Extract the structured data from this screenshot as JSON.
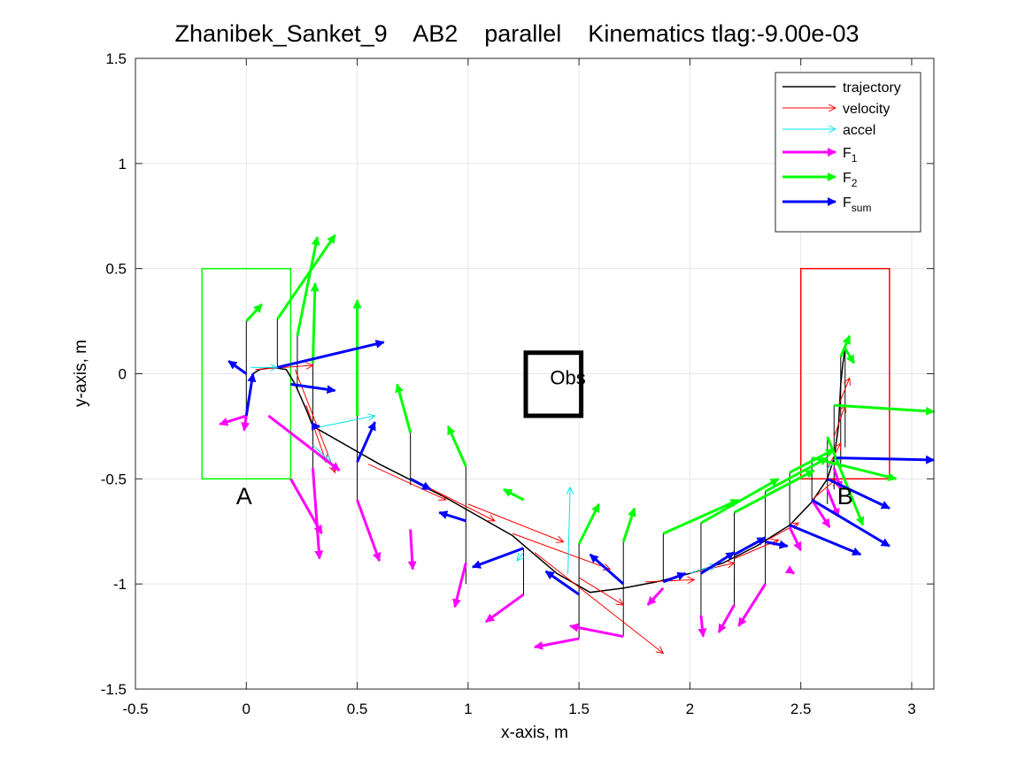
{
  "chart_data": {
    "type": "line",
    "title": "Zhanibek_Sanket_9    AB2    parallel    Kinematics tlag:-9.00e-03",
    "xlabel": "x-axis, m",
    "ylabel": "y-axis, m",
    "xlim": [
      -0.5,
      3.1
    ],
    "ylim": [
      -1.5,
      1.5
    ],
    "xticks": [
      -0.5,
      0,
      0.5,
      1,
      1.5,
      2,
      2.5,
      3
    ],
    "xtick_labels": [
      "-0.5",
      "0",
      "0.5",
      "1",
      "1.5",
      "2",
      "2.5",
      "3"
    ],
    "yticks": [
      -1.5,
      -1,
      -0.5,
      0,
      0.5,
      1,
      1.5
    ],
    "ytick_labels": [
      "-1.5",
      "-1",
      "-0.5",
      "0",
      "0.5",
      "1",
      "1.5"
    ],
    "grid": true,
    "legend_position": "top-right",
    "colors": {
      "trajectory": "#000000",
      "velocity": "#ff0000",
      "accel": "#00e5ee",
      "F1": "#ff00ff",
      "F2": "#00ff00",
      "Fsum": "#0000ff",
      "regionA": "#00ff00",
      "regionB": "#ff0000",
      "obstacle": "#000000"
    },
    "legend": [
      {
        "key": "trajectory",
        "label": "trajectory",
        "sub": ""
      },
      {
        "key": "velocity",
        "label": "velocity",
        "sub": ""
      },
      {
        "key": "accel",
        "label": "accel",
        "sub": ""
      },
      {
        "key": "F1",
        "label": "F",
        "sub": "1"
      },
      {
        "key": "F2",
        "label": "F",
        "sub": "2"
      },
      {
        "key": "Fsum",
        "label": "F",
        "sub": "sum"
      }
    ],
    "regions": {
      "A": {
        "label": "A",
        "x": [
          -0.2,
          0.2
        ],
        "y": [
          -0.5,
          0.5
        ],
        "label_at": [
          -0.01,
          -0.62
        ]
      },
      "B": {
        "label": "B",
        "x": [
          2.5,
          2.9
        ],
        "y": [
          -0.5,
          0.5
        ],
        "label_at": [
          2.7,
          -0.62
        ]
      },
      "obstacle": {
        "label": "Obs",
        "x": [
          1.26,
          1.51
        ],
        "y": [
          -0.2,
          0.1
        ],
        "label_at": [
          1.45,
          -0.05
        ]
      }
    },
    "trajectory": [
      [
        0.0,
        -0.2
      ],
      [
        0.03,
        0.0
      ],
      [
        0.06,
        0.02
      ],
      [
        0.12,
        0.03
      ],
      [
        0.18,
        0.02
      ],
      [
        0.22,
        -0.05
      ],
      [
        0.27,
        -0.17
      ],
      [
        0.3,
        -0.25
      ],
      [
        0.4,
        -0.31
      ],
      [
        0.5,
        -0.37
      ],
      [
        0.6,
        -0.43
      ],
      [
        0.75,
        -0.51
      ],
      [
        0.9,
        -0.59
      ],
      [
        1.05,
        -0.68
      ],
      [
        1.2,
        -0.77
      ],
      [
        1.3,
        -0.86
      ],
      [
        1.4,
        -0.95
      ],
      [
        1.55,
        -1.04
      ],
      [
        1.7,
        -1.02
      ],
      [
        1.85,
        -0.99
      ],
      [
        2.0,
        -0.95
      ],
      [
        2.15,
        -0.9
      ],
      [
        2.3,
        -0.82
      ],
      [
        2.45,
        -0.72
      ],
      [
        2.55,
        -0.61
      ],
      [
        2.62,
        -0.5
      ],
      [
        2.65,
        -0.4
      ],
      [
        2.67,
        -0.25
      ],
      [
        2.68,
        -0.05
      ],
      [
        2.69,
        0.05
      ],
      [
        2.7,
        0.12
      ]
    ],
    "segments": [
      {
        "x": 0.0,
        "y0": 0.25,
        "y1": -0.2
      },
      {
        "x": 0.14,
        "y0": 0.26,
        "y1": 0.03
      },
      {
        "x": 0.23,
        "y0": 0.18,
        "y1": -0.08
      },
      {
        "x": 0.3,
        "y0": 0.05,
        "y1": -0.45
      },
      {
        "x": 0.5,
        "y0": -0.2,
        "y1": -0.6
      },
      {
        "x": 0.74,
        "y0": -0.28,
        "y1": -0.53
      },
      {
        "x": 0.99,
        "y0": -0.44,
        "y1": -1.0
      },
      {
        "x": 1.25,
        "y0": -0.83,
        "y1": -1.05
      },
      {
        "x": 1.5,
        "y0": -0.81,
        "y1": -1.26
      },
      {
        "x": 1.7,
        "y0": -0.8,
        "y1": -1.25
      },
      {
        "x": 1.88,
        "y0": -0.76,
        "y1": -0.99
      },
      {
        "x": 2.05,
        "y0": -0.71,
        "y1": -1.15
      },
      {
        "x": 2.2,
        "y0": -0.66,
        "y1": -1.1
      },
      {
        "x": 2.34,
        "y0": -0.56,
        "y1": -1.0
      },
      {
        "x": 2.45,
        "y0": -0.47,
        "y1": -0.73
      },
      {
        "x": 2.55,
        "y0": -0.4,
        "y1": -0.6
      },
      {
        "x": 2.62,
        "y0": -0.3,
        "y1": -0.62
      },
      {
        "x": 2.65,
        "y0": -0.15,
        "y1": -0.55
      },
      {
        "x": 2.68,
        "y0": 0.08,
        "y1": -0.45
      },
      {
        "x": 2.7,
        "y0": 0.12,
        "y1": -0.35
      }
    ],
    "velocity": [
      [
        0.04,
        0.02,
        0.3,
        0.04
      ],
      [
        0.22,
        0.02,
        0.4,
        -0.47
      ],
      [
        0.27,
        -0.15,
        0.36,
        -0.42
      ],
      [
        0.55,
        -0.43,
        0.9,
        -0.6
      ],
      [
        0.8,
        -0.53,
        1.12,
        -0.7
      ],
      [
        1.0,
        -0.62,
        1.43,
        -0.8
      ],
      [
        1.2,
        -0.76,
        1.64,
        -0.93
      ],
      [
        1.3,
        -0.85,
        1.88,
        -1.33
      ],
      [
        1.5,
        -0.97,
        1.7,
        -1.1
      ],
      [
        1.8,
        -0.99,
        2.02,
        -0.98
      ],
      [
        2.0,
        -0.95,
        2.2,
        -0.9
      ],
      [
        2.2,
        -0.88,
        2.4,
        -0.79
      ],
      [
        2.35,
        -0.79,
        2.49,
        -0.71
      ],
      [
        2.55,
        -0.6,
        2.66,
        -0.5
      ],
      [
        2.62,
        -0.45,
        2.68,
        -0.33
      ],
      [
        2.65,
        -0.3,
        2.7,
        -0.15
      ],
      [
        2.67,
        -0.15,
        2.72,
        -0.02
      ]
    ],
    "accel": [
      [
        0.02,
        0.03,
        0.14,
        0.03
      ],
      [
        0.3,
        -0.26,
        0.58,
        -0.2
      ],
      [
        0.3,
        -0.34,
        0.38,
        -0.42
      ],
      [
        1.45,
        -0.95,
        1.46,
        -0.54
      ],
      [
        1.25,
        -0.85,
        1.22,
        -0.89
      ],
      [
        2.0,
        -0.95,
        2.12,
        -0.91
      ],
      [
        2.62,
        -0.45,
        2.68,
        -0.4
      ]
    ],
    "F1": [
      [
        0.0,
        -0.2,
        -0.12,
        -0.24
      ],
      [
        0.0,
        -0.2,
        -0.01,
        -0.27
      ],
      [
        0.1,
        -0.2,
        0.42,
        -0.46
      ],
      [
        0.3,
        -0.45,
        0.33,
        -0.88
      ],
      [
        0.2,
        -0.5,
        0.34,
        -0.76
      ],
      [
        0.5,
        -0.6,
        0.6,
        -0.89
      ],
      [
        0.74,
        -0.74,
        0.75,
        -0.93
      ],
      [
        0.99,
        -0.9,
        0.94,
        -1.11
      ],
      [
        1.25,
        -1.05,
        1.08,
        -1.18
      ],
      [
        1.5,
        -1.26,
        1.3,
        -1.3
      ],
      [
        1.7,
        -1.25,
        1.46,
        -1.2
      ],
      [
        1.88,
        -1.02,
        1.81,
        -1.1
      ],
      [
        2.05,
        -1.15,
        2.06,
        -1.25
      ],
      [
        2.2,
        -1.1,
        2.13,
        -1.23
      ],
      [
        2.34,
        -1.0,
        2.22,
        -1.2
      ],
      [
        2.45,
        -0.73,
        2.5,
        -0.84
      ],
      [
        2.44,
        -0.93,
        2.47,
        -0.95
      ],
      [
        2.55,
        -0.6,
        2.63,
        -0.73
      ],
      [
        2.62,
        -0.55,
        2.67,
        -0.68
      ],
      [
        2.65,
        -0.45,
        2.68,
        -0.55
      ]
    ],
    "F2": [
      [
        0.0,
        0.25,
        0.07,
        0.33
      ],
      [
        0.14,
        0.26,
        0.4,
        0.66
      ],
      [
        0.23,
        0.18,
        0.32,
        0.65
      ],
      [
        0.3,
        0.05,
        0.31,
        0.43
      ],
      [
        0.5,
        -0.2,
        0.5,
        0.35
      ],
      [
        0.74,
        -0.28,
        0.68,
        -0.05
      ],
      [
        0.99,
        -0.44,
        0.91,
        -0.25
      ],
      [
        1.25,
        -0.6,
        1.16,
        -0.55
      ],
      [
        1.5,
        -0.81,
        1.59,
        -0.62
      ],
      [
        1.7,
        -0.8,
        1.75,
        -0.64
      ],
      [
        1.88,
        -0.76,
        2.22,
        -0.6
      ],
      [
        2.05,
        -0.71,
        2.4,
        -0.5
      ],
      [
        2.2,
        -0.66,
        2.56,
        -0.46
      ],
      [
        2.34,
        -0.56,
        2.62,
        -0.4
      ],
      [
        2.45,
        -0.47,
        2.65,
        -0.36
      ],
      [
        2.55,
        -0.4,
        2.93,
        -0.5
      ],
      [
        2.62,
        -0.3,
        2.78,
        -0.72
      ],
      [
        2.65,
        -0.15,
        3.1,
        -0.18
      ],
      [
        2.68,
        0.08,
        2.72,
        0.18
      ],
      [
        2.7,
        0.12,
        2.74,
        0.05
      ]
    ],
    "Fsum": [
      [
        0.0,
        -0.2,
        0.03,
        0.0
      ],
      [
        0.0,
        0.0,
        -0.08,
        0.06
      ],
      [
        0.14,
        0.03,
        0.62,
        0.15
      ],
      [
        0.2,
        -0.05,
        0.4,
        -0.08
      ],
      [
        0.3,
        -0.25,
        0.33,
        -0.25
      ],
      [
        0.5,
        -0.42,
        0.58,
        -0.23
      ],
      [
        0.74,
        -0.5,
        0.83,
        -0.55
      ],
      [
        0.99,
        -0.7,
        0.87,
        -0.66
      ],
      [
        1.25,
        -0.83,
        1.02,
        -0.92
      ],
      [
        1.5,
        -1.05,
        1.35,
        -0.94
      ],
      [
        1.7,
        -1.0,
        1.55,
        -0.86
      ],
      [
        1.88,
        -0.99,
        1.98,
        -0.95
      ],
      [
        2.05,
        -0.95,
        2.2,
        -0.85
      ],
      [
        2.2,
        -0.86,
        2.34,
        -0.78
      ],
      [
        2.34,
        -0.8,
        2.44,
        -0.82
      ],
      [
        2.45,
        -0.72,
        2.77,
        -0.86
      ],
      [
        2.55,
        -0.6,
        2.9,
        -0.82
      ],
      [
        2.62,
        -0.5,
        2.9,
        -0.64
      ],
      [
        2.66,
        -0.4,
        3.1,
        -0.41
      ]
    ]
  }
}
